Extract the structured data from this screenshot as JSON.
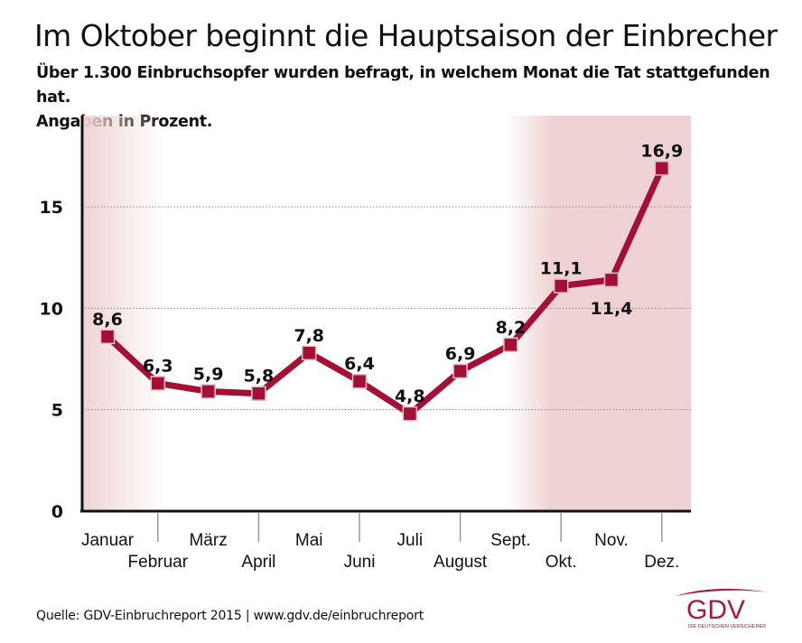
{
  "header": {
    "title": "Im Oktober beginnt die Hauptsaison der Einbrecher",
    "subtitle_line1": "Über 1.300 Einbruchsopfer wurden befragt, in welchem Monat die Tat stattgefunden hat.",
    "subtitle_line2": "Angaben in Prozent."
  },
  "footer": {
    "source": "Quelle: GDV-Einbruchreport 2015 | www.gdv.de/einbruchreport"
  },
  "logo": {
    "text": "GDV",
    "tagline": "DIE DEUTSCHEN VERSICHERER"
  },
  "colors": {
    "line": "#a50f35",
    "highlight": "#efd3d3",
    "logo": "#a01e3c"
  },
  "chart_data": {
    "type": "line",
    "title": "Im Oktober beginnt die Hauptsaison der Einbrecher",
    "categories": [
      "Januar",
      "Februar",
      "März",
      "April",
      "Mai",
      "Juni",
      "Juli",
      "August",
      "Sept.",
      "Okt.",
      "Nov.",
      "Dez."
    ],
    "values": [
      8.6,
      6.3,
      5.9,
      5.8,
      7.8,
      6.4,
      4.8,
      6.9,
      8.2,
      11.1,
      11.4,
      16.9
    ],
    "data_labels": [
      "8,6",
      "6,3",
      "5,9",
      "5,8",
      "7,8",
      "6,4",
      "4,8",
      "6,9",
      "8,2",
      "11,1",
      "11,4",
      "16,9"
    ],
    "ylim": [
      0,
      17.8
    ],
    "yticks": [
      0,
      5,
      10,
      15
    ],
    "grid": true,
    "highlighted_months": [
      "Januar",
      "Sept.",
      "Okt.",
      "Nov.",
      "Dez."
    ]
  }
}
